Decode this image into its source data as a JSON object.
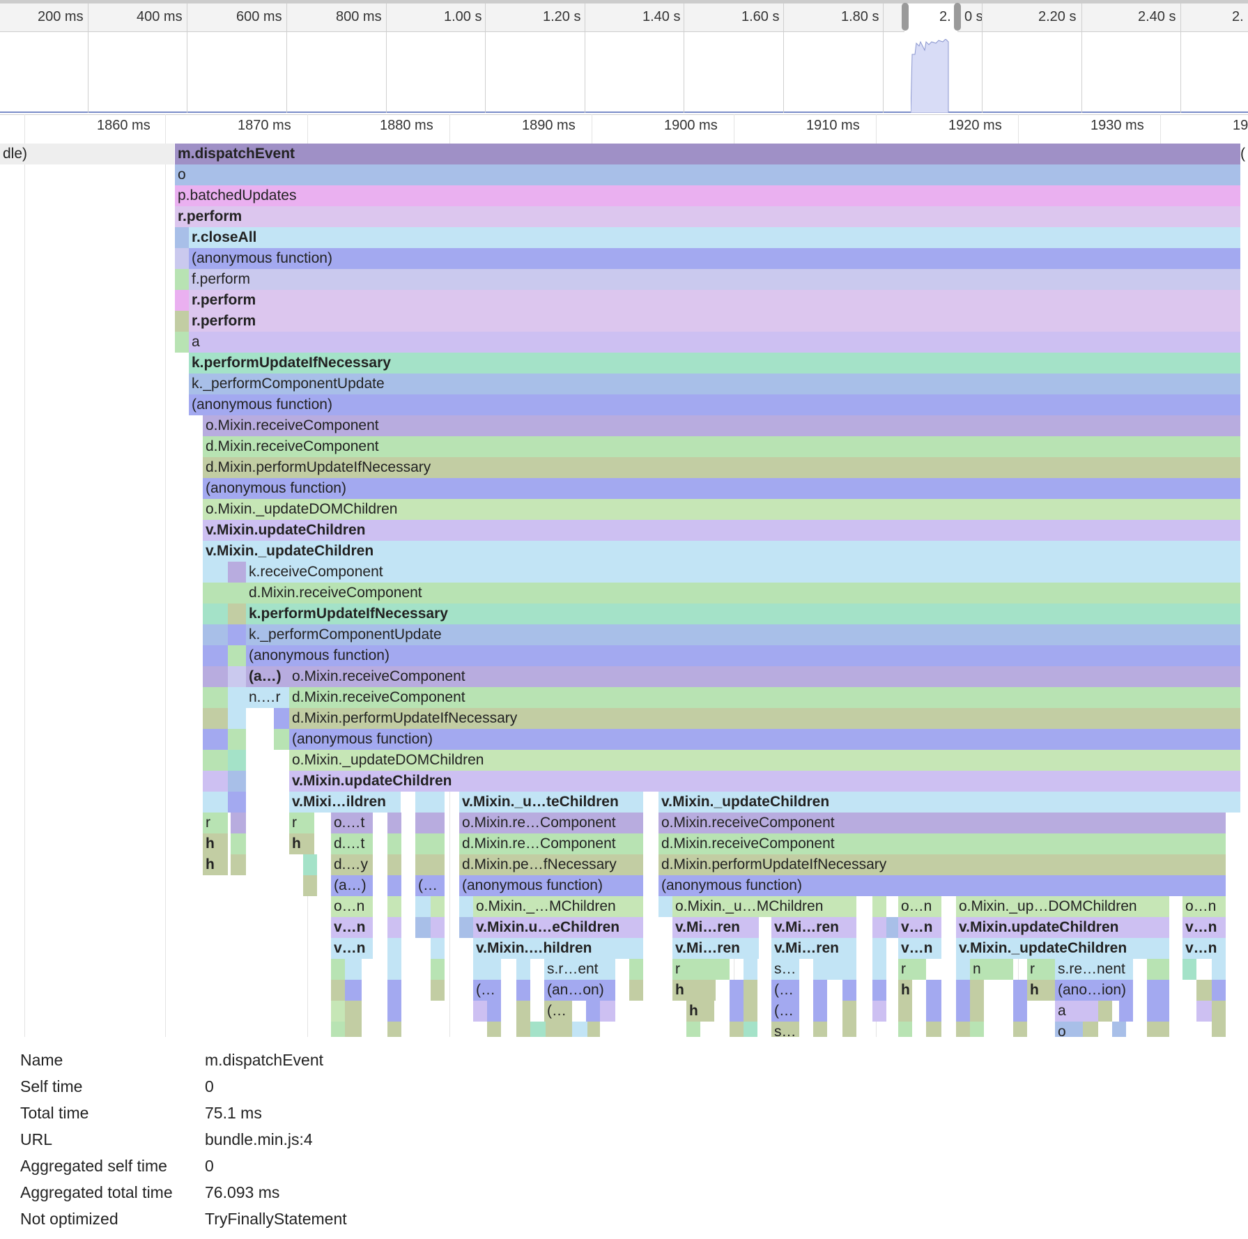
{
  "overview": {
    "ticks": [
      "200 ms",
      "400 ms",
      "600 ms",
      "800 ms",
      "1.00 s",
      "1.20 s",
      "1.40 s",
      "1.60 s",
      "1.80 s",
      "2.0 s",
      "2.20 s",
      "2.40 s",
      "2."
    ],
    "selection_label": "2.",
    "selection_label_tail": "0 s"
  },
  "detail_ruler": {
    "ticks": [
      "1860 ms",
      "1870 ms",
      "1880 ms",
      "1890 ms",
      "1900 ms",
      "1910 ms",
      "1920 ms",
      "1930 ms",
      "19"
    ]
  },
  "colors": {
    "purple": "#9f90c6",
    "blue": "#a8bfe8",
    "pink": "#eab0f0",
    "lavender": "#dcc6ee",
    "cyan": "#c2e4f5",
    "indigo": "#a3a9f0",
    "periwinkle": "#cac9ee",
    "mint": "#a4e2c8",
    "green": "#b8e3b3",
    "olive": "#c2cda3",
    "violet": "#cdc0f2"
  },
  "flame": {
    "left_label": "dle)",
    "right_label": "(",
    "rows": [
      {
        "label": "m.dispatchEvent",
        "bold": true
      },
      {
        "label": "o",
        "bold": false
      },
      {
        "label": "p.batchedUpdates",
        "bold": false
      },
      {
        "label": "r.perform",
        "bold": true
      },
      {
        "label": "r.closeAll",
        "bold": true
      },
      {
        "label": "(anonymous function)",
        "bold": false
      },
      {
        "label": "f.perform",
        "bold": false
      },
      {
        "label": "r.perform",
        "bold": true
      },
      {
        "label": "r.perform",
        "bold": true
      },
      {
        "label": "a",
        "bold": false
      },
      {
        "label": "k.performUpdateIfNecessary",
        "bold": true
      },
      {
        "label": "k._performComponentUpdate",
        "bold": false
      },
      {
        "label": "(anonymous function)",
        "bold": false
      },
      {
        "label": "o.Mixin.receiveComponent",
        "bold": false
      },
      {
        "label": "d.Mixin.receiveComponent",
        "bold": false
      },
      {
        "label": "d.Mixin.performUpdateIfNecessary",
        "bold": false
      },
      {
        "label": "(anonymous function)",
        "bold": false
      },
      {
        "label": "o.Mixin._updateDOMChildren",
        "bold": false
      },
      {
        "label": "v.Mixin.updateChildren",
        "bold": true
      },
      {
        "label": "v.Mixin._updateChildren",
        "bold": true
      },
      {
        "label": "k.receiveComponent",
        "bold": false
      },
      {
        "label": "d.Mixin.receiveComponent",
        "bold": false
      },
      {
        "label": "k.performUpdateIfNecessary",
        "bold": true
      },
      {
        "label": "k._performComponentUpdate",
        "bold": false
      },
      {
        "label": "(anonymous function)",
        "bold": false
      },
      {
        "label": "o.Mixin.receiveComponent",
        "bold": false
      },
      {
        "label": "d.Mixin.receiveComponent",
        "bold": false
      },
      {
        "label": "d.Mixin.performUpdateIfNecessary",
        "bold": false
      },
      {
        "label": "(anonymous function)",
        "bold": false
      },
      {
        "label": "o.Mixin._updateDOMChildren",
        "bold": false
      },
      {
        "label": "v.Mixin.updateChildren",
        "bold": true
      }
    ],
    "small": {
      "a_paren": "(a…)",
      "n_r": "n.…r",
      "vmixi_ildren": "v.Mixi…ildren",
      "vmixin_u_te": "v.Mixin._u…teChildren",
      "vmixin_updatechildren": "v.Mixin._updateChildren",
      "r": "r",
      "h": "h",
      "o_t": "o.…t",
      "d_t": "d.…t",
      "d_y": "d.…y",
      "a_short": "(a…)",
      "o_n": "o…n",
      "v_n": "v…n",
      "paren_ellipsis": "(…",
      "omixin_re_comp": "o.Mixin.re…Component",
      "dmixin_re_comp": "d.Mixin.re…Component",
      "dmixin_pe_fnec": "d.Mixin.pe…fNecessary",
      "anon": "(anonymous function)",
      "omixin_mchildren": "o.Mixin._…MChildren",
      "vmixin_u_echildren": "v.Mixin.u…eChildren",
      "vmixin_hildren": "v.Mixin.…hildren",
      "sr_ent": "s.r…ent",
      "an_on": "(an…on)",
      "omixin_receive": "o.Mixin.receiveComponent",
      "dmixin_receive": "d.Mixin.receiveComponent",
      "dmixin_perform": "d.Mixin.performUpdateIfNecessary",
      "omixin_u_mchildren": "o.Mixin._u…MChildren",
      "vmi_ren": "v.Mi…ren",
      "s_ellipsis": "s…",
      "omixin_up_dom": "o.Mixin._up…DOMChildren",
      "vmixin_updatechildren2": "v.Mixin.updateChildren",
      "vmixin__updatechildren2": "v.Mixin._updateChildren",
      "n": "n",
      "sre_nent": "s.re…nent",
      "ano_ion": "(ano…ion)",
      "a": "a",
      "o": "o"
    }
  },
  "details": {
    "rows": [
      {
        "key": "Name",
        "value": "m.dispatchEvent"
      },
      {
        "key": "Self time",
        "value": "0"
      },
      {
        "key": "Total time",
        "value": "75.1 ms"
      },
      {
        "key": "URL",
        "value": "bundle.min.js:4"
      },
      {
        "key": "Aggregated self time",
        "value": "0"
      },
      {
        "key": "Aggregated total time",
        "value": "76.093 ms"
      },
      {
        "key": "Not optimized",
        "value": "TryFinallyStatement"
      }
    ]
  }
}
